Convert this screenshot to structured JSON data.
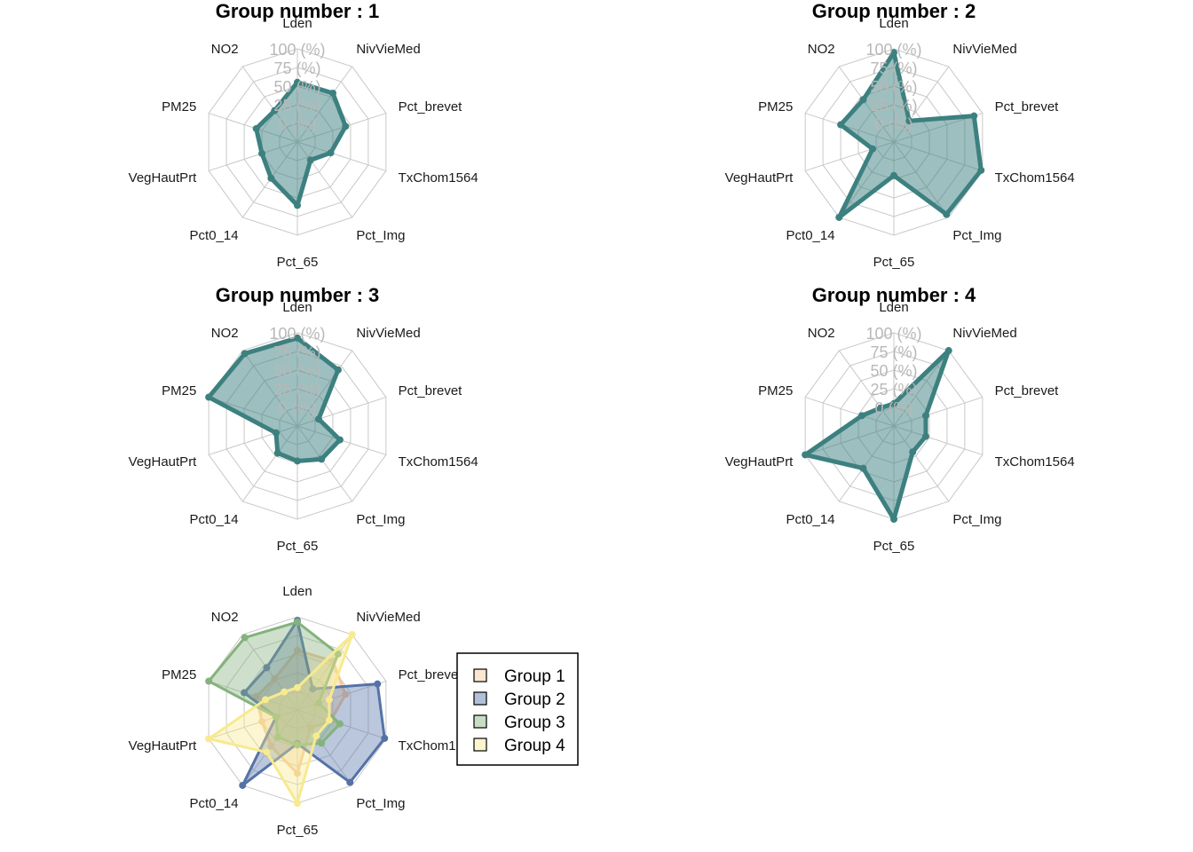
{
  "chart_data": [
    {
      "type": "radar",
      "title": "Group number :  1",
      "axes": [
        "Lden",
        "NivVieMed",
        "Pct_brevet",
        "TxChom1564",
        "Pct_Img",
        "Pct_65",
        "Pct0_14",
        "VegHautPrt",
        "PM25",
        "NO2"
      ],
      "ticks": [
        "0 (%)",
        "25 (%)",
        "50 (%)",
        "75 (%)",
        "100 (%)"
      ],
      "range": [
        0,
        100
      ],
      "color": "#3d8080",
      "values": [
        55,
        56,
        43,
        22,
        5,
        60,
        35,
        25,
        33,
        27
      ]
    },
    {
      "type": "radar",
      "title": "Group number :  2",
      "axes": [
        "Lden",
        "NivVieMed",
        "Pct_brevet",
        "TxChom1564",
        "Pct_Img",
        "Pct_65",
        "Pct0_14",
        "VegHautPrt",
        "PM25",
        "NO2"
      ],
      "ticks": [
        "0 (%)",
        "25 (%)",
        "50 (%)",
        "75 (%)",
        "100 (%)"
      ],
      "range": [
        0,
        100
      ],
      "color": "#3d8080",
      "values": [
        95,
        10,
        88,
        98,
        95,
        20,
        100,
        5,
        50,
        45
      ]
    },
    {
      "type": "radar",
      "title": "Group number :  3",
      "axes": [
        "Lden",
        "NivVieMed",
        "Pct_brevet",
        "TxChom1564",
        "Pct_Img",
        "Pct_65",
        "Pct0_14",
        "VegHautPrt",
        "PM25",
        "NO2"
      ],
      "ticks": [
        "0 (%)",
        "25 (%)",
        "50 (%)",
        "75 (%)",
        "100 (%)"
      ],
      "range": [
        0,
        100
      ],
      "color": "#3d8080",
      "values": [
        93,
        68,
        5,
        35,
        30,
        22,
        20,
        5,
        100,
        95
      ]
    },
    {
      "type": "radar",
      "title": "Group number :  4",
      "axes": [
        "Lden",
        "NivVieMed",
        "Pct_brevet",
        "TxChom1564",
        "Pct_Img",
        "Pct_65",
        "Pct0_14",
        "VegHautPrt",
        "PM25",
        "NO2"
      ],
      "ticks": [
        "0 (%)",
        "25 (%)",
        "50 (%)",
        "75 (%)",
        "100 (%)"
      ],
      "range": [
        0,
        100
      ],
      "color": "#3d8080",
      "values": [
        5,
        100,
        20,
        20,
        18,
        100,
        45,
        100,
        20,
        5
      ]
    },
    {
      "type": "radar",
      "title": "",
      "axes": [
        "Lden",
        "NivVieMed",
        "Pct_brevet",
        "TxChom1564",
        "Pct_Img",
        "Pct_65",
        "Pct0_14",
        "VegHautPrt",
        "PM25",
        "NO2"
      ],
      "range": [
        0,
        100
      ],
      "legend_position": "right",
      "series": [
        {
          "name": "Group 1",
          "color": "#f5c99a",
          "values": [
            55,
            56,
            43,
            22,
            5,
            60,
            35,
            25,
            33,
            27
          ]
        },
        {
          "name": "Group 2",
          "color": "#5572a8",
          "values": [
            95,
            10,
            88,
            98,
            95,
            20,
            100,
            5,
            50,
            45
          ]
        },
        {
          "name": "Group 3",
          "color": "#84b27c",
          "values": [
            93,
            68,
            5,
            35,
            30,
            22,
            20,
            5,
            100,
            95
          ]
        },
        {
          "name": "Group 4",
          "color": "#f7ea8f",
          "values": [
            5,
            100,
            20,
            20,
            18,
            100,
            45,
            100,
            20,
            5
          ]
        }
      ]
    }
  ]
}
